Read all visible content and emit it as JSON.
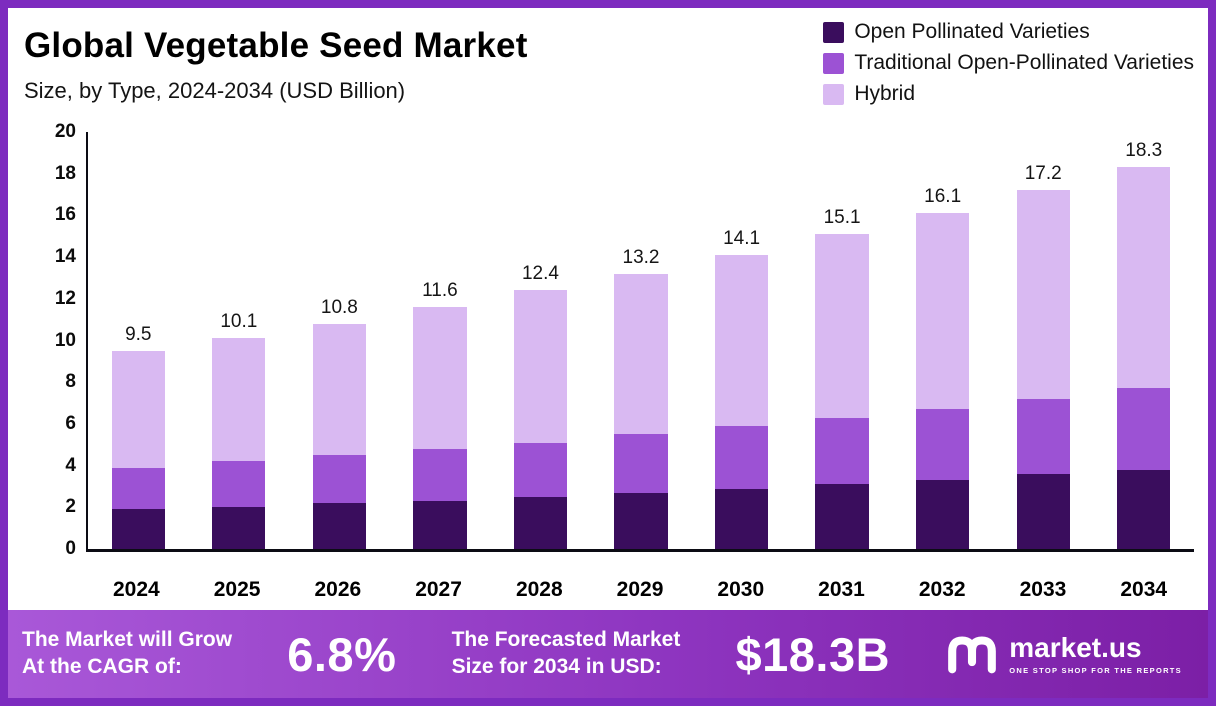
{
  "header": {
    "title": "Global Vegetable Seed Market",
    "subtitle": "Size, by Type, 2024-2034 (USD Billion)"
  },
  "legend": [
    {
      "label": "Open Pollinated Varieties",
      "color": "#3a0d5d"
    },
    {
      "label": "Traditional Open-Pollinated Varieties",
      "color": "#9c52d4"
    },
    {
      "label": "Hybrid",
      "color": "#d9b9f2"
    }
  ],
  "chart_data": {
    "type": "bar",
    "stacked": true,
    "title": "Global Vegetable Seed Market Size, by Type, 2024-2034 (USD Billion)",
    "categories": [
      "2024",
      "2025",
      "2026",
      "2027",
      "2028",
      "2029",
      "2030",
      "2031",
      "2032",
      "2033",
      "2034"
    ],
    "series": [
      {
        "name": "Open Pollinated Varieties",
        "color": "#3a0d5d",
        "values": [
          1.9,
          2.0,
          2.2,
          2.3,
          2.5,
          2.7,
          2.9,
          3.1,
          3.3,
          3.6,
          3.8
        ]
      },
      {
        "name": "Traditional Open-Pollinated Varieties",
        "color": "#9c52d4",
        "values": [
          2.0,
          2.2,
          2.3,
          2.5,
          2.6,
          2.8,
          3.0,
          3.2,
          3.4,
          3.6,
          3.9
        ]
      },
      {
        "name": "Hybrid",
        "color": "#d9b9f2",
        "values": [
          5.6,
          5.9,
          6.3,
          6.8,
          7.3,
          7.7,
          8.2,
          8.8,
          9.4,
          10.0,
          10.6
        ]
      }
    ],
    "totals": [
      9.5,
      10.1,
      10.8,
      11.6,
      12.4,
      13.2,
      14.1,
      15.1,
      16.1,
      17.2,
      18.3
    ],
    "xlabel": "",
    "ylabel": "USD Billion",
    "ylim": [
      0,
      20
    ],
    "ytick_step": 2,
    "grid": false,
    "legend_position": "top-right"
  },
  "banner": {
    "cagr_line1": "The Market will Grow",
    "cagr_line2": "At the CAGR of:",
    "cagr_value": "6.8%",
    "forecast_line1": "The Forecasted Market",
    "forecast_line2": "Size for 2034 in USD:",
    "forecast_value": "$18.3B",
    "brand": "market.us",
    "brand_tagline": "ONE STOP SHOP FOR THE REPORTS"
  },
  "colors": {
    "frame_border": "#7d2bbf",
    "banner_gradient_start": "#a958d8",
    "banner_gradient_end": "#7c1fa6",
    "axis": "#0c0c14",
    "text": "#000000"
  }
}
